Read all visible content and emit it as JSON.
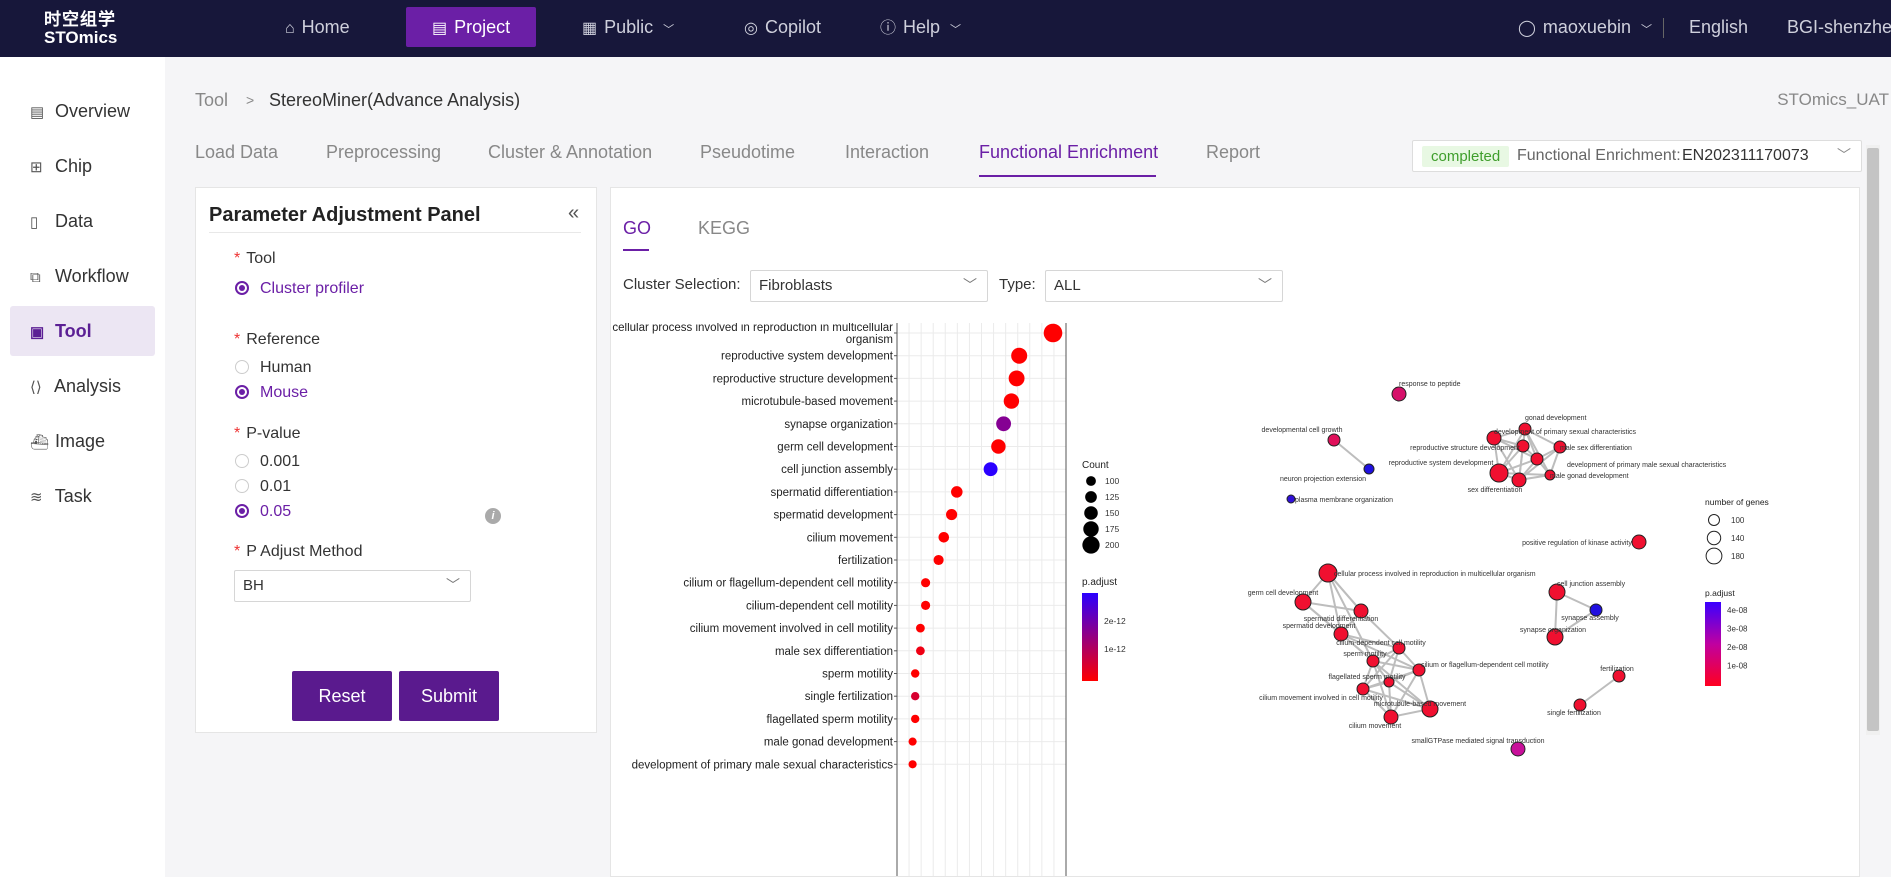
{
  "app": {
    "logo_cn": "时空组学",
    "logo_en": "STOmics"
  },
  "topnav": {
    "items": [
      {
        "label": "Home",
        "icon": "home-icon"
      },
      {
        "label": "Project",
        "icon": "document-icon"
      },
      {
        "label": "Public",
        "icon": "grid-icon"
      },
      {
        "label": "Copilot",
        "icon": "globe-icon"
      },
      {
        "label": "Help",
        "icon": "question-icon"
      }
    ],
    "user": "maoxuebin",
    "language": "English",
    "region": "BGI-shenzhen"
  },
  "sidebar": {
    "items": [
      {
        "label": "Overview",
        "icon": "document-icon"
      },
      {
        "label": "Chip",
        "icon": "chip-icon"
      },
      {
        "label": "Data",
        "icon": "file-icon"
      },
      {
        "label": "Workflow",
        "icon": "workflow-icon"
      },
      {
        "label": "Tool",
        "icon": "image-icon"
      },
      {
        "label": "Analysis",
        "icon": "code-icon"
      },
      {
        "label": "Image",
        "icon": "ship-icon"
      },
      {
        "label": "Task",
        "icon": "layers-icon"
      }
    ],
    "active": "Tool"
  },
  "breadcrumb": {
    "root": "Tool",
    "separator": ">",
    "current": "StereoMiner(Advance Analysis)"
  },
  "environment": "STOmics_UAT",
  "tabs": [
    "Load Data",
    "Preprocessing",
    "Cluster & Annotation",
    "Pseudotime",
    "Interaction",
    "Functional Enrichment",
    "Report"
  ],
  "active_tab": "Functional Enrichment",
  "status": {
    "badge": "completed",
    "label": "Functional Enrichment:",
    "value": "EN202311170073"
  },
  "panel": {
    "title": "Parameter Adjustment Panel",
    "tool_label": "Tool",
    "tool_option": "Cluster profiler",
    "reference_label": "Reference",
    "reference_options": [
      "Human",
      "Mouse"
    ],
    "reference_selected": "Mouse",
    "pvalue_label": "P-value",
    "pvalue_options": [
      "0.001",
      "0.01",
      "0.05"
    ],
    "pvalue_selected": "0.05",
    "padjust_label": "P Adjust Method",
    "padjust_value": "BH",
    "reset_label": "Reset",
    "submit_label": "Submit"
  },
  "result": {
    "tabs": [
      "GO",
      "KEGG"
    ],
    "active_tab": "GO",
    "cluster_label": "Cluster Selection:",
    "cluster_value": "Fibroblasts",
    "type_label": "Type:",
    "type_value": "ALL"
  },
  "chart_data": [
    {
      "type": "scatter",
      "title": "",
      "categories": [
        "cellular process involved in reproduction in multicellular organism",
        "reproductive system development",
        "reproductive structure development",
        "microtubule-based movement",
        "synapse organization",
        "germ cell development",
        "cell junction assembly",
        "spermatid differentiation",
        "spermatid development",
        "cilium movement",
        "fertilization",
        "cilium or flagellum-dependent cell motility",
        "cilium-dependent cell motility",
        "cilium movement involved in cell motility",
        "male sex differentiation",
        "sperm motility",
        "single fertilization",
        "flagellated sperm motility",
        "male gonad development",
        "development of primary male sexual characteristics"
      ],
      "ratio": [
        0.1,
        0.087,
        0.086,
        0.084,
        0.081,
        0.079,
        0.076,
        0.063,
        0.061,
        0.058,
        0.056,
        0.051,
        0.051,
        0.049,
        0.049,
        0.047,
        0.047,
        0.047,
        0.046,
        0.046
      ],
      "count": [
        205,
        172,
        170,
        164,
        157,
        152,
        145,
        115,
        110,
        103,
        97,
        85,
        85,
        80,
        80,
        75,
        75,
        75,
        72,
        72
      ],
      "p_adjust": [
        1e-14,
        1e-14,
        1e-14,
        1e-14,
        1.5e-12,
        1e-14,
        2.6e-12,
        1e-14,
        1e-14,
        1e-14,
        1e-14,
        1e-14,
        1e-14,
        1e-14,
        2e-13,
        1e-14,
        5e-13,
        1e-14,
        1e-14,
        1e-14
      ],
      "legend_count": {
        "title": "Count",
        "values": [
          100,
          125,
          150,
          175,
          200
        ]
      },
      "legend_padj": {
        "title": "p.adjust",
        "ticks": [
          "2e-12",
          "1e-12"
        ]
      },
      "colors": {
        "low": "#ff0000",
        "high": "#2b00ff"
      }
    },
    {
      "type": "network",
      "nodes": [
        {
          "label": "response to peptide",
          "color": "#d6106a"
        },
        {
          "label": "developmental cell growth",
          "color": "#e0105a"
        },
        {
          "label": "neuron projection extension",
          "color": "#1f10e0"
        },
        {
          "label": "plasma membrane organization",
          "color": "#3010d8"
        },
        {
          "label": "gonad development",
          "color": "#f01030"
        },
        {
          "label": "development of primary sexual characteristics",
          "color": "#f01030"
        },
        {
          "label": "male sex differentiation",
          "color": "#f01030"
        },
        {
          "label": "reproductive structure development",
          "color": "#f01030"
        },
        {
          "label": "reproductive system development",
          "color": "#f01030"
        },
        {
          "label": "development of primary male sexual characteristics",
          "color": "#f01030"
        },
        {
          "label": "male gonad development",
          "color": "#f01030"
        },
        {
          "label": "sex differentiation",
          "color": "#f01030"
        },
        {
          "label": "positive regulation of kinase activity",
          "color": "#f01030"
        },
        {
          "label": "cellular process involved in reproduction in multicellular organism",
          "color": "#f01030"
        },
        {
          "label": "germ cell development",
          "color": "#f01030"
        },
        {
          "label": "spermatid differentiation",
          "color": "#f01030"
        },
        {
          "label": "spermatid development",
          "color": "#f01030"
        },
        {
          "label": "cilium-dependent cell motility",
          "color": "#f01030"
        },
        {
          "label": "sperm motility",
          "color": "#f01030"
        },
        {
          "label": "cilium or flagellum-dependent cell motility",
          "color": "#f01030"
        },
        {
          "label": "flagellated sperm motility",
          "color": "#f01030"
        },
        {
          "label": "cilium movement involved in cell motility",
          "color": "#f01030"
        },
        {
          "label": "microtubule-based movement",
          "color": "#f01030"
        },
        {
          "label": "cilium movement",
          "color": "#f01030"
        },
        {
          "label": "cell junction assembly",
          "color": "#f01030"
        },
        {
          "label": "synapse assembly",
          "color": "#2010e0"
        },
        {
          "label": "synapse organization",
          "color": "#f01030"
        },
        {
          "label": "fertilization",
          "color": "#f01030"
        },
        {
          "label": "single fertilization",
          "color": "#f01030"
        },
        {
          "label": "smallGTPase mediated signal transduction",
          "color": "#c8109a"
        }
      ],
      "legend_genes": {
        "title": "number of genes",
        "values": [
          100,
          140,
          180
        ]
      },
      "legend_padj": {
        "title": "p.adjust",
        "ticks": [
          "4e-08",
          "3e-08",
          "2e-08",
          "1e-08"
        ]
      }
    }
  ]
}
